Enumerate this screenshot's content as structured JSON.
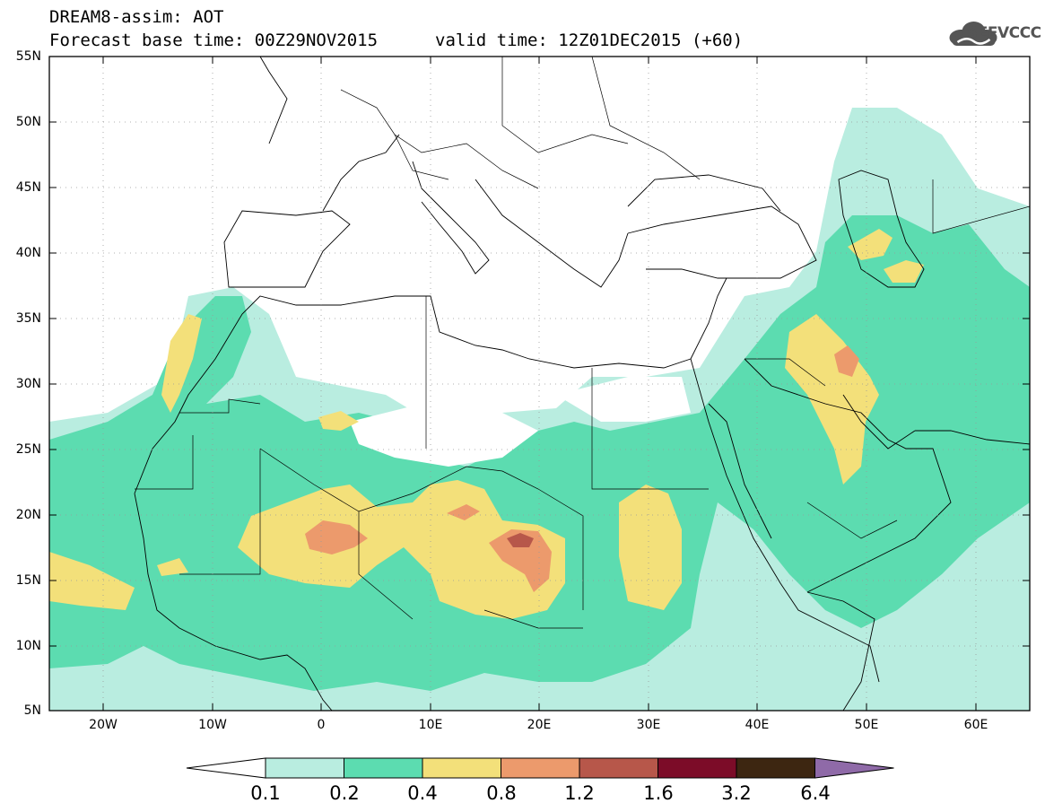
{
  "header": {
    "title": "DREAM8-assim: AOT",
    "base_time": "Forecast base time: 00Z29NOV2015",
    "valid_time": "valid time: 12Z01DEC2015 (+60)",
    "logo_text": "SEEVCCC",
    "logo_icon": "cloud-icon"
  },
  "axes": {
    "lat_ticks": [
      "55N",
      "50N",
      "45N",
      "40N",
      "35N",
      "30N",
      "25N",
      "20N",
      "15N",
      "10N",
      "5N"
    ],
    "lon_ticks": [
      "20W",
      "10W",
      "0",
      "10E",
      "20E",
      "30E",
      "40E",
      "50E",
      "60E"
    ]
  },
  "colorbar": {
    "labels": [
      "0.1",
      "0.2",
      "0.4",
      "0.8",
      "1.2",
      "1.6",
      "3.2",
      "6.4"
    ],
    "colors": [
      "#ffffff",
      "#b9ede0",
      "#5cdcb0",
      "#f3e07a",
      "#ec9a6c",
      "#b7574a",
      "#7c0c28",
      "#3d2611",
      "#8f6aa8"
    ]
  }
}
